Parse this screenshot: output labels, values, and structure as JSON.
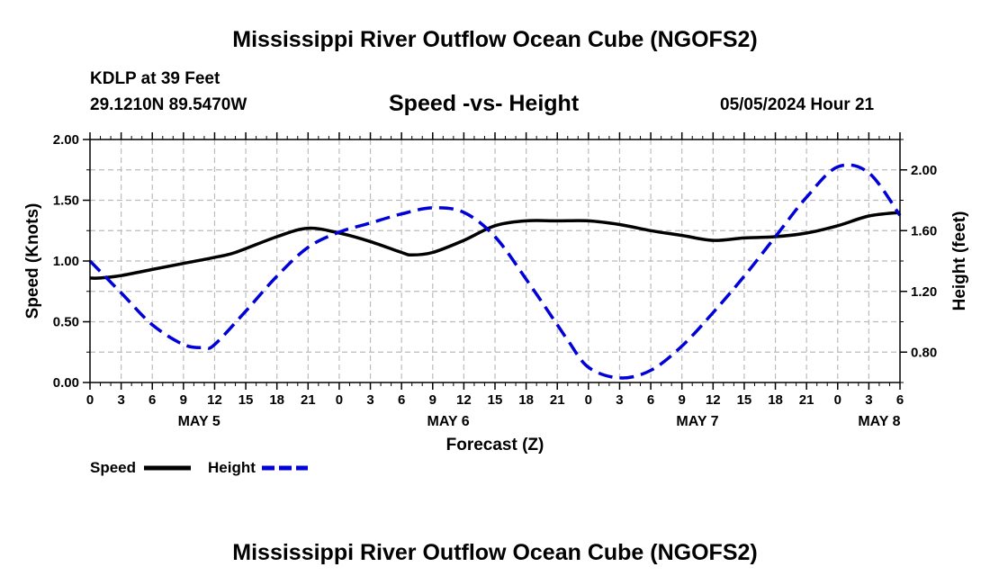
{
  "header": {
    "title": "Mississippi River Outflow Ocean Cube (NGOFS2)",
    "station": "KDLP at 39 Feet",
    "coords": "29.1210N  89.5470W",
    "subtitle": "Speed -vs- Height",
    "datetime": "05/05/2024 Hour 21"
  },
  "footer": {
    "title": "Mississippi River Outflow Ocean Cube (NGOFS2)"
  },
  "chart_data": {
    "type": "line",
    "title": "Speed -vs- Height",
    "xlabel": "Forecast (Z)",
    "ylabel": "Speed (Knots)",
    "y2label": "Height (feet)",
    "xlim": [
      0,
      78
    ],
    "ylim": [
      0,
      2
    ],
    "y2lim": [
      0.6,
      2.2
    ],
    "x_ticks": [
      0,
      3,
      6,
      9,
      12,
      15,
      18,
      21,
      24,
      27,
      30,
      33,
      36,
      39,
      42,
      45,
      48,
      51,
      54,
      57,
      60,
      63,
      66,
      69,
      72,
      75,
      78
    ],
    "x_tick_labels": [
      "0",
      "3",
      "6",
      "9",
      "12",
      "15",
      "18",
      "21",
      "0",
      "3",
      "6",
      "9",
      "12",
      "15",
      "18",
      "21",
      "0",
      "3",
      "6",
      "9",
      "12",
      "15",
      "18",
      "21",
      "0",
      "3",
      "6"
    ],
    "y_ticks": [
      0,
      0.5,
      1,
      1.5,
      2
    ],
    "y_tick_labels": [
      "0.00",
      "0.50",
      "1.00",
      "1.50",
      "2.00"
    ],
    "y2_ticks": [
      0.8,
      1.2,
      1.6,
      2.0
    ],
    "y2_tick_labels": [
      "0.80",
      "1.20",
      "1.60",
      "2.00"
    ],
    "day_labels": [
      {
        "x": 10.5,
        "label": "MAY 5"
      },
      {
        "x": 34.5,
        "label": "MAY 6"
      },
      {
        "x": 58.5,
        "label": "MAY 7"
      },
      {
        "x": 76,
        "label": "MAY 8"
      }
    ],
    "grid": true,
    "legend": "bottom-left",
    "series": [
      {
        "name": "Speed",
        "axis": "left",
        "color": "#000000",
        "style": "solid",
        "x": [
          0,
          1,
          3,
          6,
          9,
          12,
          14,
          18,
          21,
          24,
          27,
          30,
          31,
          33,
          36,
          39,
          42,
          45,
          48,
          51,
          54,
          57,
          60,
          63,
          66,
          69,
          72,
          75,
          78
        ],
        "values": [
          0.86,
          0.86,
          0.88,
          0.93,
          0.98,
          1.03,
          1.07,
          1.2,
          1.27,
          1.23,
          1.16,
          1.07,
          1.05,
          1.07,
          1.17,
          1.29,
          1.33,
          1.33,
          1.33,
          1.3,
          1.25,
          1.21,
          1.17,
          1.19,
          1.2,
          1.23,
          1.29,
          1.37,
          1.4
        ]
      },
      {
        "name": "Height",
        "axis": "right",
        "color": "#0000d8",
        "style": "dashed",
        "x": [
          0,
          3,
          6,
          9,
          11,
          12,
          15,
          18,
          21,
          24,
          27,
          30,
          33,
          36,
          39,
          42,
          45,
          46,
          48,
          51,
          54,
          57,
          60,
          63,
          66,
          69,
          72,
          75,
          78
        ],
        "values": [
          1.4,
          1.19,
          0.98,
          0.85,
          0.83,
          0.85,
          1.07,
          1.3,
          1.49,
          1.59,
          1.65,
          1.71,
          1.75,
          1.72,
          1.56,
          1.28,
          0.98,
          0.88,
          0.7,
          0.63,
          0.68,
          0.84,
          1.06,
          1.3,
          1.56,
          1.82,
          2.02,
          1.98,
          1.7
        ]
      }
    ]
  }
}
